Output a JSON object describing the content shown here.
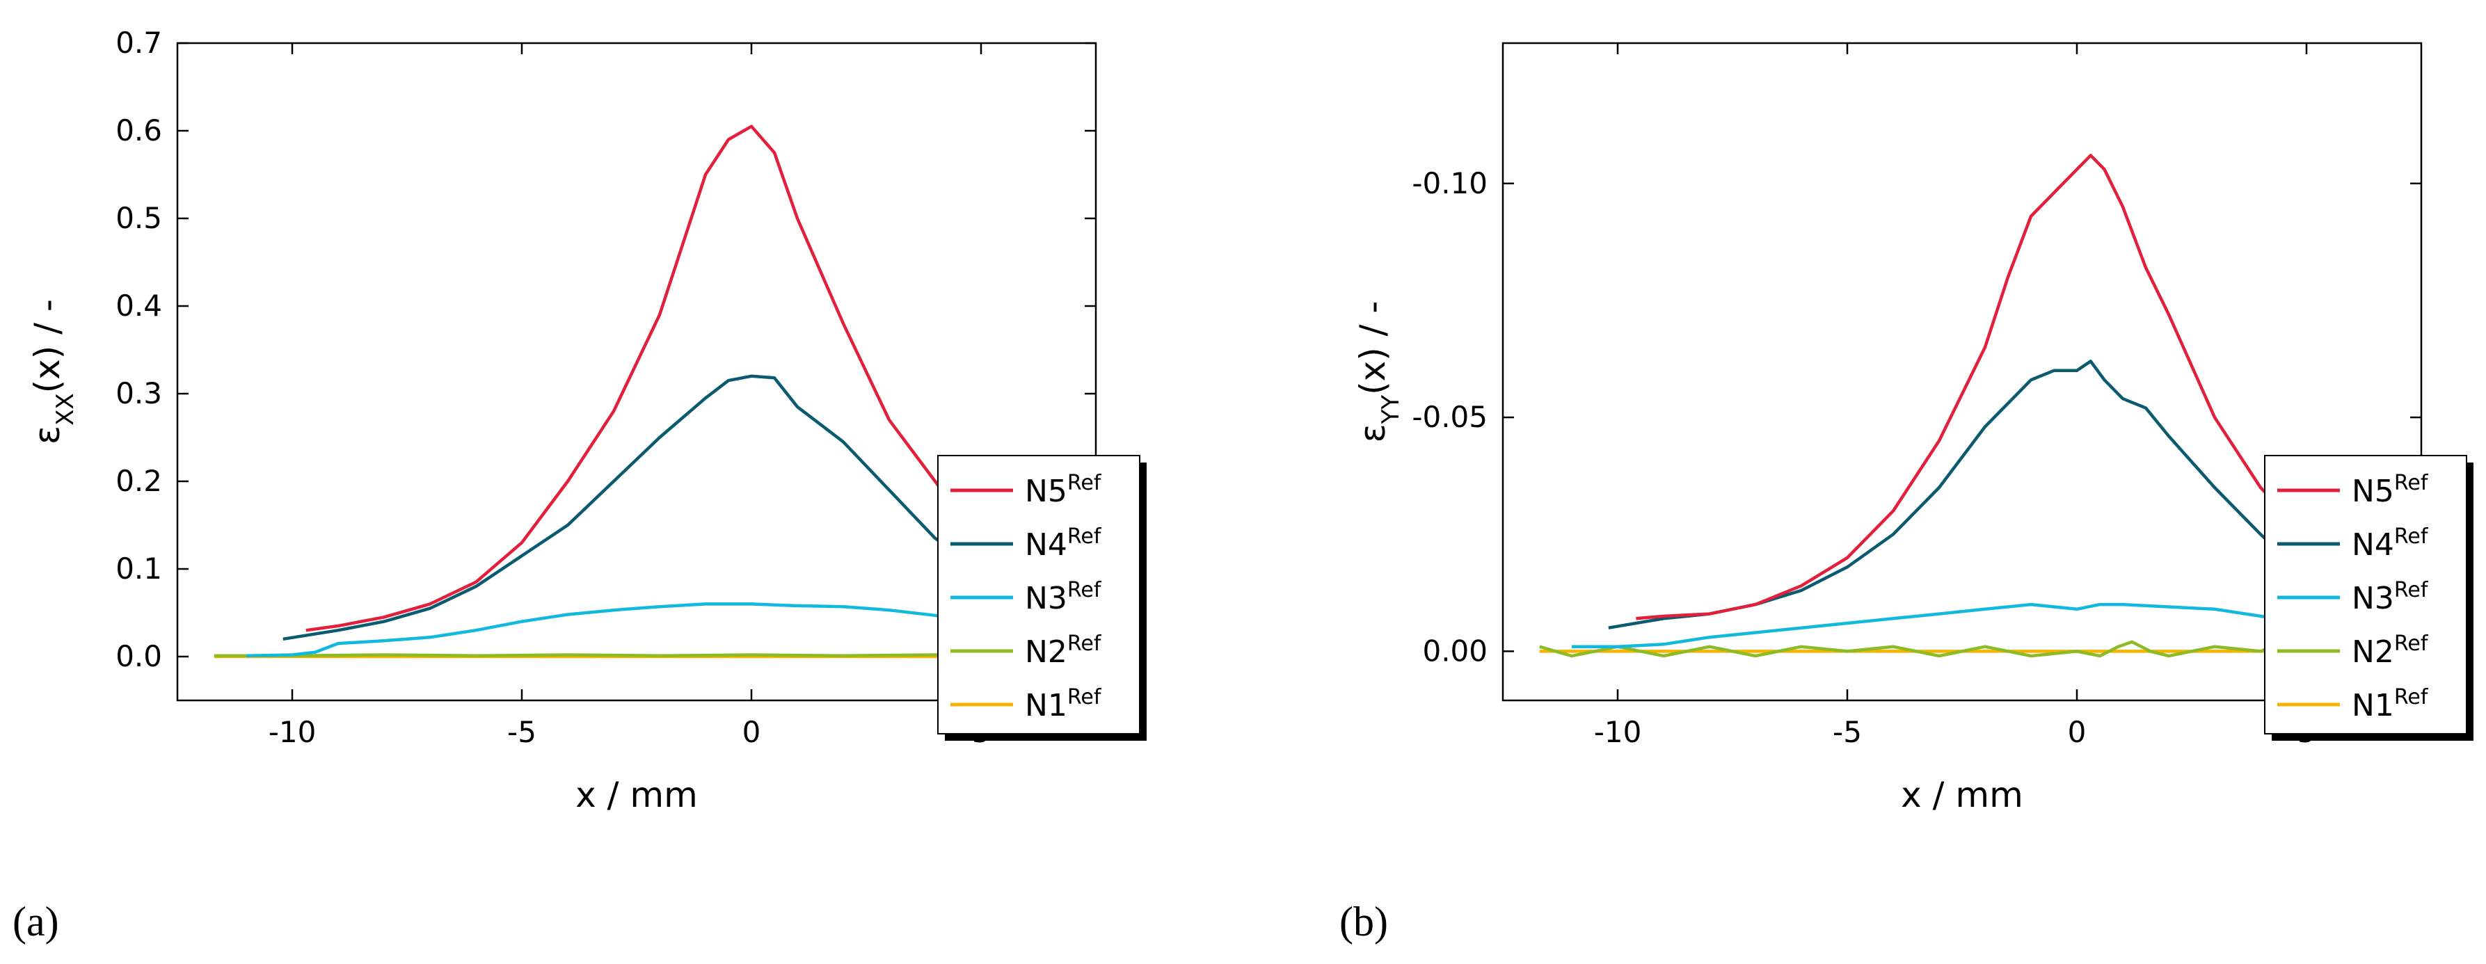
{
  "chart_data": [
    {
      "panel_label": "(a)",
      "type": "line",
      "xlabel": "x / mm",
      "ylabel": "ε_XX(x) / -",
      "ylabel_symbol": "ε",
      "ylabel_sub": "XX",
      "ylabel_rest": "(x) / -",
      "xlim": [
        -12.5,
        7.5
      ],
      "ylim": [
        -0.05,
        0.7
      ],
      "xticks": [
        -10,
        -5,
        0,
        5
      ],
      "xtick_labels": [
        "-10",
        "-5",
        "0",
        "5"
      ],
      "yticks": [
        0.0,
        0.1,
        0.2,
        0.3,
        0.4,
        0.5,
        0.6,
        0.7
      ],
      "ytick_labels": [
        "0.0",
        "0.1",
        "0.2",
        "0.3",
        "0.4",
        "0.5",
        "0.6",
        "0.7"
      ],
      "legend_placement": "right",
      "series": [
        {
          "name": "N5",
          "sup": "Ref",
          "color": "#e2203c",
          "x": [
            -9.7,
            -9,
            -8,
            -7,
            -6,
            -5,
            -4,
            -3,
            -2,
            -1.5,
            -1,
            -0.5,
            0,
            0.5,
            1,
            1.5,
            2,
            3,
            4,
            5,
            6,
            6.8
          ],
          "y": [
            0.03,
            0.035,
            0.045,
            0.06,
            0.085,
            0.13,
            0.2,
            0.28,
            0.39,
            0.47,
            0.55,
            0.59,
            0.605,
            0.575,
            0.5,
            0.44,
            0.38,
            0.27,
            0.2,
            0.13,
            0.085,
            0.062
          ]
        },
        {
          "name": "N4",
          "sup": "Ref",
          "color": "#0a5a70",
          "x": [
            -10.2,
            -9,
            -8,
            -7,
            -6,
            -5,
            -4,
            -3,
            -2,
            -1,
            -0.5,
            0,
            0.5,
            1,
            1.5,
            2,
            3,
            4,
            5,
            6,
            6.5
          ],
          "y": [
            0.02,
            0.03,
            0.04,
            0.055,
            0.08,
            0.115,
            0.15,
            0.2,
            0.25,
            0.295,
            0.315,
            0.32,
            0.318,
            0.285,
            0.265,
            0.245,
            0.19,
            0.135,
            0.1,
            0.08,
            0.062
          ]
        },
        {
          "name": "N3",
          "sup": "Ref",
          "color": "#12b9de",
          "x": [
            -11,
            -10,
            -9.5,
            -9,
            -8,
            -7,
            -6,
            -5,
            -4,
            -3,
            -2,
            -1,
            0,
            1,
            2,
            3,
            4,
            5,
            5.6
          ],
          "y": [
            0.001,
            0.002,
            0.005,
            0.015,
            0.018,
            0.022,
            0.03,
            0.04,
            0.048,
            0.053,
            0.057,
            0.06,
            0.06,
            0.058,
            0.057,
            0.053,
            0.047,
            0.037,
            0.028
          ]
        },
        {
          "name": "N2",
          "sup": "Ref",
          "color": "#8dbb25",
          "x": [
            -11.7,
            -10,
            -8,
            -6,
            -4,
            -2,
            0,
            2,
            4,
            5.5
          ],
          "y": [
            0.001,
            0.001,
            0.002,
            0.001,
            0.002,
            0.001,
            0.002,
            0.001,
            0.002,
            0.002
          ]
        },
        {
          "name": "N1",
          "sup": "Ref",
          "color": "#f5b400",
          "x": [
            -11.7,
            -10,
            -8,
            -6,
            -4,
            -2,
            0,
            2,
            4,
            5.5
          ],
          "y": [
            0.0,
            0.0,
            0.0,
            0.0,
            0.0,
            0.0,
            0.0,
            0.0,
            0.0,
            0.0
          ]
        }
      ]
    },
    {
      "panel_label": "(b)",
      "type": "line",
      "xlabel": "x / mm",
      "ylabel": "ε_YY(x) / -",
      "ylabel_symbol": "ε",
      "ylabel_sub": "YY",
      "ylabel_rest": "(x) / -",
      "xlim": [
        -12.5,
        7.5
      ],
      "ylim": [
        0.0105,
        -0.13
      ],
      "y_inverted": true,
      "xticks": [
        -10,
        -5,
        0,
        5
      ],
      "xtick_labels": [
        "-10",
        "-5",
        "0",
        "5"
      ],
      "yticks": [
        0.0,
        -0.05,
        -0.1
      ],
      "ytick_labels": [
        "0.00",
        "-0.05",
        "-0.10"
      ],
      "legend_placement": "right",
      "series": [
        {
          "name": "N5",
          "sup": "Ref",
          "color": "#e2203c",
          "x": [
            -9.6,
            -9,
            -8,
            -7,
            -6,
            -5,
            -4,
            -3,
            -2,
            -1.5,
            -1,
            -0.5,
            0,
            0.3,
            0.6,
            1,
            1.5,
            2,
            3,
            4,
            5,
            6,
            6.8
          ],
          "y": [
            -0.007,
            -0.0075,
            -0.008,
            -0.01,
            -0.014,
            -0.02,
            -0.03,
            -0.045,
            -0.065,
            -0.08,
            -0.093,
            -0.098,
            -0.103,
            -0.106,
            -0.103,
            -0.095,
            -0.082,
            -0.072,
            -0.05,
            -0.035,
            -0.025,
            -0.017,
            -0.011
          ]
        },
        {
          "name": "N4",
          "sup": "Ref",
          "color": "#0a5a70",
          "x": [
            -10.2,
            -9,
            -8,
            -7,
            -6,
            -5,
            -4,
            -3,
            -2,
            -1,
            -0.5,
            0,
            0.3,
            0.6,
            1,
            1.5,
            2,
            3,
            4,
            5,
            5.5,
            6.5
          ],
          "y": [
            -0.005,
            -0.007,
            -0.008,
            -0.01,
            -0.013,
            -0.018,
            -0.025,
            -0.035,
            -0.048,
            -0.058,
            -0.06,
            -0.06,
            -0.062,
            -0.058,
            -0.054,
            -0.052,
            -0.046,
            -0.035,
            -0.025,
            -0.016,
            -0.016,
            -0.011
          ]
        },
        {
          "name": "N3",
          "sup": "Ref",
          "color": "#12b9de",
          "x": [
            -11,
            -10,
            -9,
            -8,
            -7,
            -6,
            -5,
            -4,
            -3,
            -2,
            -1,
            0,
            0.5,
            1,
            2,
            3,
            4,
            5,
            5.6
          ],
          "y": [
            -0.001,
            -0.001,
            -0.0015,
            -0.003,
            -0.004,
            -0.005,
            -0.006,
            -0.007,
            -0.008,
            -0.009,
            -0.01,
            -0.009,
            -0.01,
            -0.01,
            -0.0095,
            -0.009,
            -0.0075,
            -0.006,
            -0.005
          ]
        },
        {
          "name": "N2",
          "sup": "Ref",
          "color": "#8dbb25",
          "x": [
            -11.7,
            -11,
            -10,
            -9,
            -8,
            -7,
            -6,
            -5,
            -4,
            -3,
            -2,
            -1,
            0,
            0.5,
            0.9,
            1.2,
            1.6,
            2,
            3,
            4,
            4.5,
            4.8,
            5.5
          ],
          "y": [
            -0.001,
            0.001,
            -0.001,
            0.001,
            -0.001,
            0.001,
            -0.001,
            0.0,
            -0.001,
            0.001,
            -0.001,
            0.001,
            0.0,
            0.001,
            -0.001,
            -0.002,
            0.0,
            0.001,
            -0.001,
            0.0,
            -0.002,
            -0.001,
            -0.001
          ]
        },
        {
          "name": "N1",
          "sup": "Ref",
          "color": "#f5b400",
          "x": [
            -11.7,
            -10,
            -8,
            -6,
            -4,
            -2,
            0,
            2,
            4,
            5.5
          ],
          "y": [
            0.0,
            0.0,
            0.0,
            0.0,
            0.0,
            0.0,
            0.0,
            0.0,
            0.0,
            0.0
          ]
        }
      ]
    }
  ]
}
